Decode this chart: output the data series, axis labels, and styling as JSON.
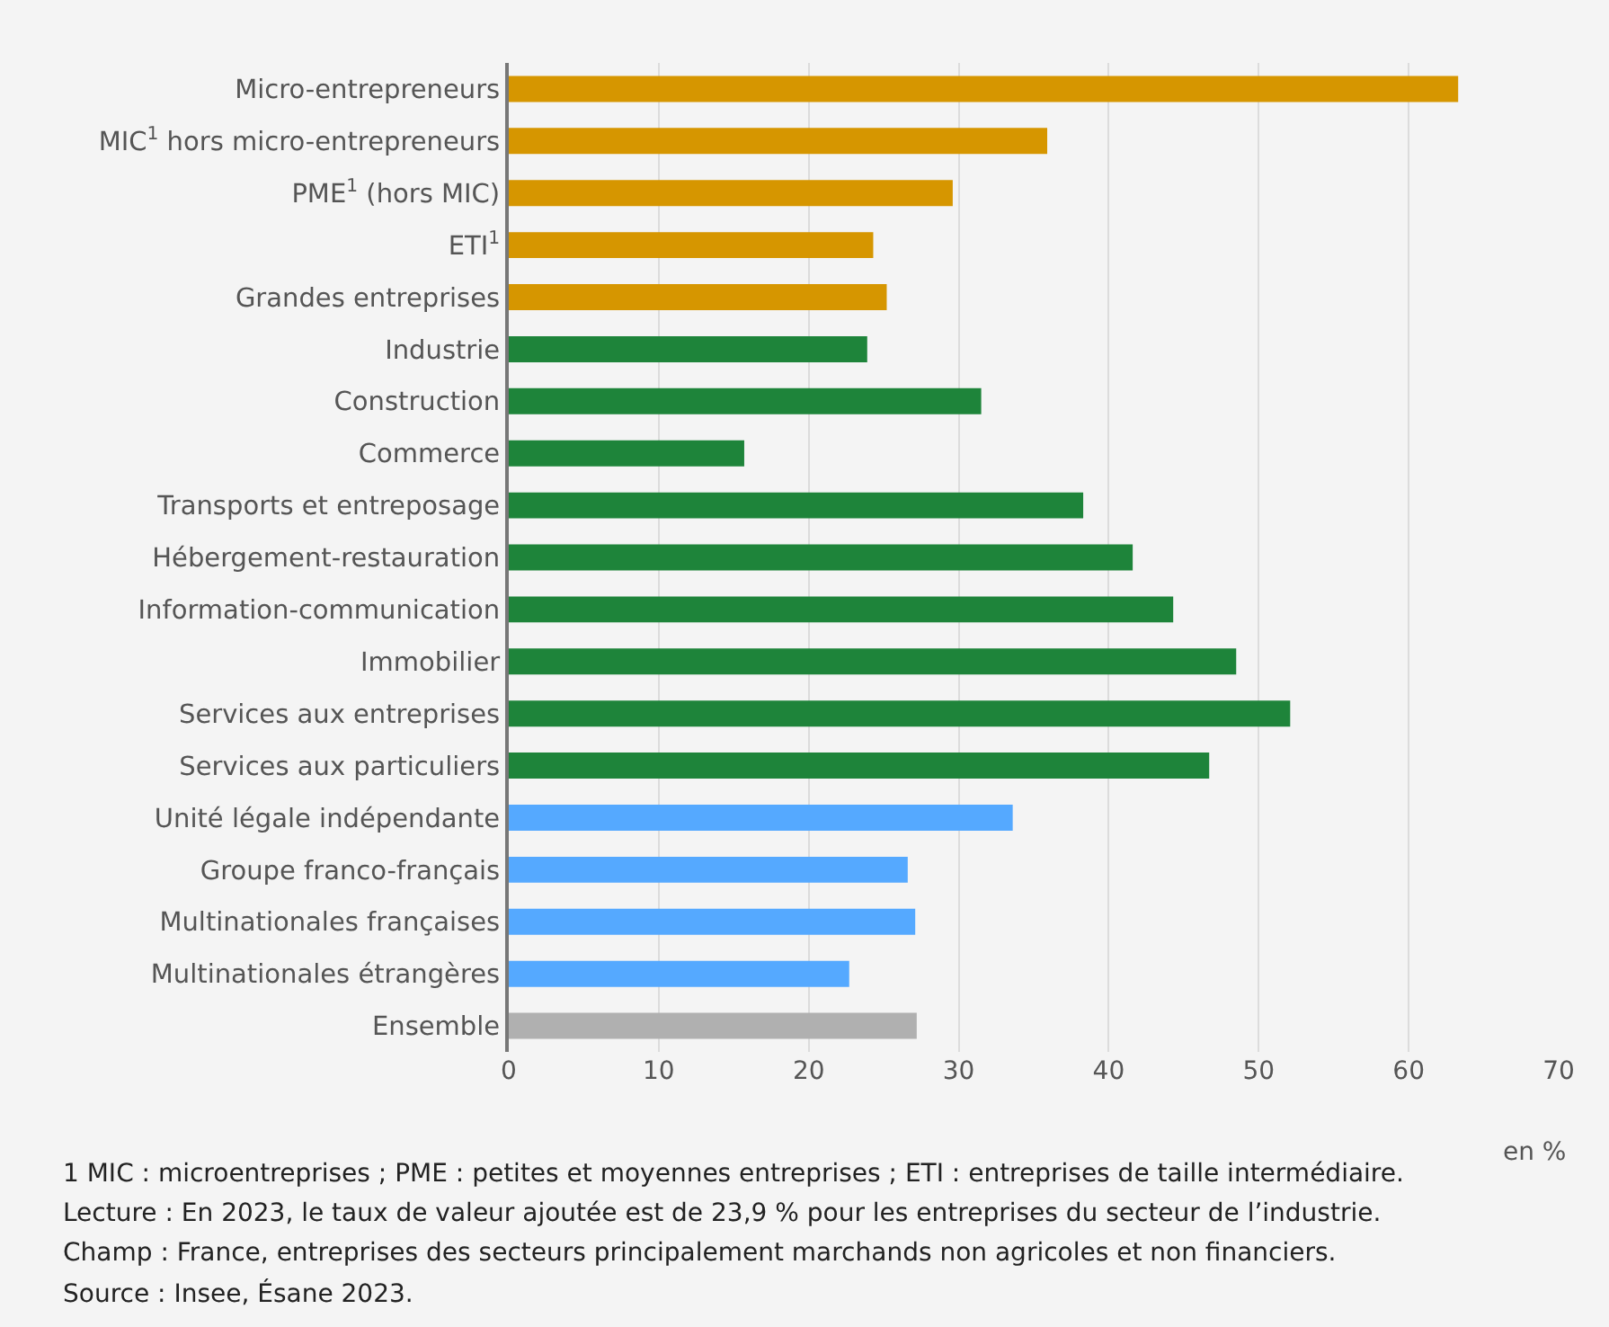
{
  "chart_data": {
    "type": "bar",
    "orientation": "horizontal",
    "categories": [
      "Micro-entrepreneurs",
      "MIC$^{1}$ hors micro-entrepreneurs",
      "PME$^{1}$ (hors MIC)",
      "ETI$^{1}$",
      "Grandes entreprises",
      "Industrie",
      "Construction",
      "Commerce",
      "Transports et entreposage",
      "Hébergement-restauration",
      "Information-communication",
      "Immobilier",
      "Services aux entreprises",
      "Services aux particuliers",
      "Unité légale indépendante",
      "Groupe franco-français",
      "Multinationales françaises",
      "Multinationales étrangères",
      "Ensemble"
    ],
    "values": [
      63.3,
      35.9,
      29.6,
      24.3,
      25.2,
      23.9,
      31.5,
      15.7,
      38.3,
      41.6,
      44.3,
      48.5,
      52.1,
      46.7,
      33.6,
      26.6,
      27.1,
      22.7,
      27.2
    ],
    "colors": [
      "#d69600",
      "#d69600",
      "#d69600",
      "#d69600",
      "#d69600",
      "#1e843a",
      "#1e843a",
      "#1e843a",
      "#1e843a",
      "#1e843a",
      "#1e843a",
      "#1e843a",
      "#1e843a",
      "#1e843a",
      "#55a9ff",
      "#55a9ff",
      "#55a9ff",
      "#55a9ff",
      "#b0b0b0"
    ],
    "xlim": [
      0,
      70
    ],
    "xticks": [
      0,
      10,
      20,
      30,
      40,
      50,
      60,
      70
    ],
    "grid": "x",
    "xlabel": "en %",
    "annotations": [
      "1 MIC : microentreprises ; PME : petites et moyennes entreprises ; ETI : entreprises de taille intermédiaire.",
      "Lecture : En 2023, le taux de valeur ajoutée est de 23,9 % pour les entreprises du secteur de l’industrie.",
      "Champ : France, entreprises des secteurs principalement marchands non agricoles et non financiers.",
      "Source : Insee, Ésane 2023."
    ]
  }
}
